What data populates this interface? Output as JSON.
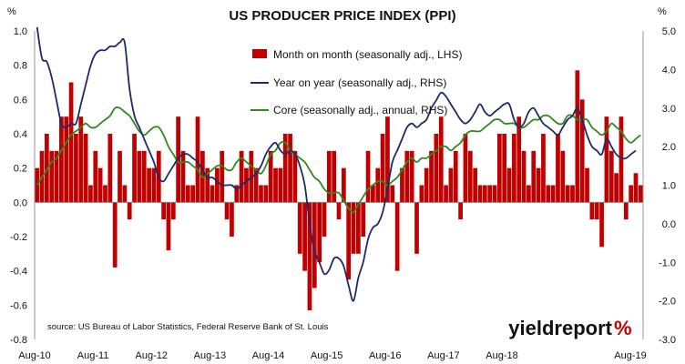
{
  "chart_data": {
    "type": "bar+line",
    "title": "US PRODUCER PRICE INDEX (PPI)",
    "left_axis_label": "%",
    "right_axis_label": "%",
    "left_ylim": [
      -0.8,
      1.0
    ],
    "right_ylim": [
      -3.0,
      5.0
    ],
    "left_ticks": [
      "1.0",
      "0.8",
      "0.6",
      "0.4",
      "0.2",
      "0.0",
      "-0.2",
      "-0.4",
      "-0.6",
      "-0.8"
    ],
    "right_ticks": [
      "5.0",
      "4.0",
      "3.0",
      "2.0",
      "1.0",
      "0.0",
      "-1.0",
      "-2.0",
      "-3.0"
    ],
    "x_ticks": [
      "Aug-10",
      "Aug-11",
      "Aug-12",
      "Aug-13",
      "Aug-14",
      "Aug-15",
      "Aug-16",
      "Aug-17",
      "Aug-18",
      "Aug-19"
    ],
    "grid": false,
    "legend_position": "top-center",
    "series": [
      {
        "name": "Month on month (seasonally adj., LHS)",
        "kind": "bar",
        "axis": "left",
        "color": "#c00000",
        "values": [
          0.2,
          0.3,
          0.4,
          0.3,
          0.3,
          0.5,
          0.5,
          0.7,
          0.4,
          0.5,
          0.4,
          0.1,
          0.3,
          0.2,
          0.1,
          0.4,
          -0.38,
          0.3,
          0.1,
          -0.1,
          0.4,
          0.3,
          0.3,
          0.2,
          0.2,
          0.3,
          -0.1,
          -0.28,
          -0.1,
          0.5,
          0.3,
          0.1,
          0.1,
          0.5,
          0.3,
          0.2,
          0.1,
          0.2,
          0.3,
          -0.1,
          -0.2,
          0.1,
          0.3,
          0.2,
          0.3,
          0.2,
          0.1,
          0.1,
          0.3,
          0.2,
          0.2,
          0.4,
          0.4,
          0.3,
          -0.3,
          -0.4,
          -0.63,
          -0.5,
          -0.35,
          -0.2,
          0.3,
          0.3,
          -0.1,
          0.2,
          -0.45,
          -0.3,
          -0.3,
          -0.2,
          0.3,
          0.1,
          0.2,
          0.4,
          0.5,
          0.1,
          -0.4,
          0.2,
          0.3,
          0.3,
          -0.3,
          0.1,
          0.2,
          0.3,
          0.4,
          0.5,
          0.1,
          0.2,
          0.3,
          -0.1,
          0.4,
          0.3,
          0.2,
          0.1,
          0.1,
          0.1,
          0.1,
          0.4,
          0.4,
          0.2,
          0.4,
          0.5,
          0.3,
          0.1,
          0.3,
          0.2,
          0.4,
          0.1,
          0.1,
          0.4,
          0.3,
          0.1,
          0.1,
          0.77,
          0.6,
          0.2,
          -0.1,
          -0.1,
          -0.26,
          0.5,
          0.3,
          0.17,
          0.5,
          -0.1,
          0.1,
          0.17,
          0.1
        ]
      },
      {
        "name": "Year on year (seasonally adj., RHS)",
        "kind": "line",
        "axis": "right",
        "color": "#1f2a68",
        "values": [
          5.1,
          4.3,
          4.2,
          3.8,
          3.2,
          2.6,
          2.5,
          2.6,
          2.6,
          3.1,
          3.6,
          4.1,
          4.4,
          4.5,
          4.5,
          4.6,
          4.6,
          4.7,
          4.7,
          3.5,
          2.8,
          2.5,
          2.2,
          1.9,
          1.6,
          1.2,
          1.1,
          1.3,
          1.5,
          1.7,
          1.8,
          1.8,
          1.7,
          1.6,
          1.4,
          1.2,
          1.2,
          1.1,
          1.0,
          1.0,
          1.0,
          0.9,
          1.0,
          1.1,
          1.2,
          1.3,
          1.5,
          1.8,
          2.0,
          2.1,
          1.9,
          1.8,
          1.9,
          1.8,
          1.5,
          1.0,
          0.0,
          -0.7,
          -1.0,
          -1.3,
          -1.2,
          -0.9,
          -0.9,
          -1.1,
          -1.6,
          -2.0,
          -1.4,
          -1.0,
          -0.4,
          -0.1,
          0.0,
          0.3,
          0.9,
          1.6,
          1.9,
          2.2,
          2.5,
          2.6,
          2.5,
          2.6,
          2.7,
          3.0,
          3.2,
          3.4,
          3.3,
          3.1,
          2.9,
          2.7,
          2.6,
          2.7,
          2.9,
          3.1,
          2.9,
          2.8,
          2.9,
          3.0,
          3.1,
          3.1,
          2.7,
          2.5,
          2.6,
          2.9,
          3.0,
          2.8,
          2.6,
          2.5,
          2.4,
          2.3,
          2.5,
          2.7,
          2.8,
          3.0,
          2.7,
          2.3,
          2.0,
          1.9,
          1.8,
          2.2,
          2.0,
          1.8,
          1.7,
          1.7,
          1.8,
          1.9
        ]
      },
      {
        "name": "Core (seasonally adj., annual, RHS)",
        "kind": "line",
        "axis": "right",
        "color": "#2f8a1e",
        "values": [
          1.0,
          1.2,
          1.4,
          1.6,
          1.7,
          1.9,
          2.1,
          2.3,
          2.4,
          2.5,
          2.6,
          2.5,
          2.5,
          2.6,
          2.7,
          2.8,
          3.0,
          3.0,
          2.9,
          2.8,
          2.6,
          2.4,
          2.3,
          2.4,
          2.5,
          2.5,
          2.3,
          2.0,
          1.8,
          1.6,
          1.6,
          1.6,
          1.5,
          1.4,
          1.2,
          1.3,
          1.4,
          1.5,
          1.5,
          1.4,
          1.4,
          1.6,
          1.7,
          1.6,
          1.5,
          1.4,
          1.3,
          1.5,
          1.8,
          1.9,
          2.1,
          2.1,
          1.9,
          1.8,
          1.7,
          1.6,
          1.4,
          1.2,
          1.1,
          0.9,
          0.8,
          0.8,
          0.8,
          0.6,
          0.4,
          0.3,
          0.5,
          0.7,
          0.9,
          1.0,
          1.1,
          1.1,
          1.0,
          1.1,
          1.2,
          1.4,
          1.6,
          1.7,
          1.6,
          1.7,
          1.7,
          1.8,
          1.9,
          2.0,
          2.0,
          1.9,
          2.0,
          2.1,
          2.3,
          2.4,
          2.4,
          2.4,
          2.5,
          2.6,
          2.7,
          2.7,
          2.6,
          2.6,
          2.6,
          2.5,
          2.5,
          2.6,
          2.7,
          2.7,
          2.8,
          2.8,
          2.7,
          2.6,
          2.6,
          2.8,
          2.8,
          2.7,
          2.7,
          2.7,
          2.5,
          2.4,
          2.3,
          2.4,
          2.6,
          2.5,
          2.4,
          2.2,
          2.1,
          2.2,
          2.3
        ]
      }
    ],
    "source": "source: US Bureau of Labor Statistics, Federal Reserve Bank of St. Louis",
    "brand": "yieldreport",
    "brand_symbol": "%",
    "brand_color": "#111111",
    "brand_accent": "#c00000"
  }
}
